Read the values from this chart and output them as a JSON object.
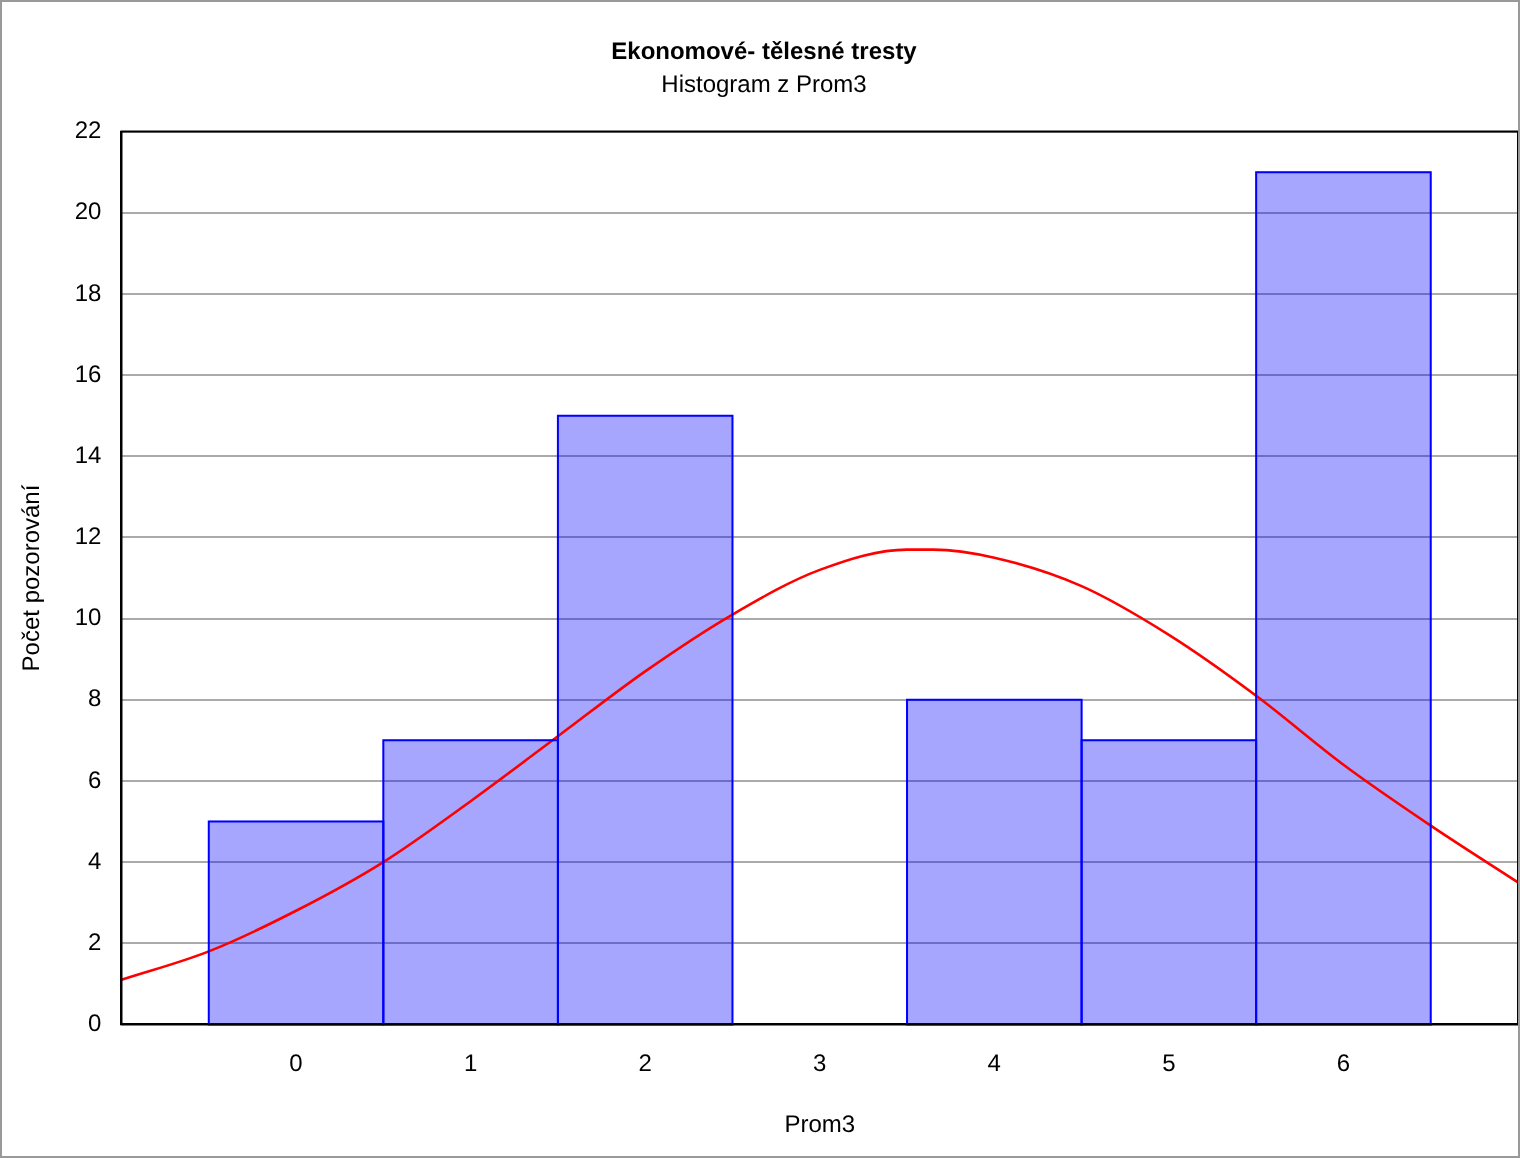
{
  "chart_data": {
    "type": "histogram",
    "title": "Ekonomové- tělesné tresty",
    "subtitle": "Histogram z Prom3",
    "xlabel": "Prom3",
    "ylabel": "Počet pozorování",
    "bins": [
      -0.5,
      0.5,
      1.5,
      2.5,
      3.5,
      4.5,
      5.5,
      6.5
    ],
    "values": [
      5,
      7,
      15,
      0,
      8,
      7,
      21
    ],
    "color": "#0000ff",
    "series": [
      {
        "type": "line",
        "color": "#ff0000",
        "x": [
          -1,
          -0.5,
          0,
          0.5,
          1,
          1.5,
          2,
          2.5,
          3,
          3.5,
          3.65,
          4,
          4.5,
          5,
          5.5,
          6,
          6.5,
          7
        ],
        "values": [
          1.1,
          1.8,
          2.8,
          4.0,
          5.5,
          7.1,
          8.7,
          10.1,
          11.2,
          11.7,
          11.7,
          11.5,
          10.8,
          9.6,
          8.1,
          6.4,
          4.9,
          3.5
        ]
      }
    ],
    "xlim": [
      -1,
      7
    ],
    "xticks": [
      0,
      1,
      2,
      3,
      4,
      5,
      6
    ],
    "ylim": [
      0,
      22
    ],
    "yticks": [
      0,
      2,
      4,
      6,
      8,
      10,
      12,
      14,
      16,
      18,
      20,
      22
    ],
    "grid": "y",
    "legend": false
  }
}
